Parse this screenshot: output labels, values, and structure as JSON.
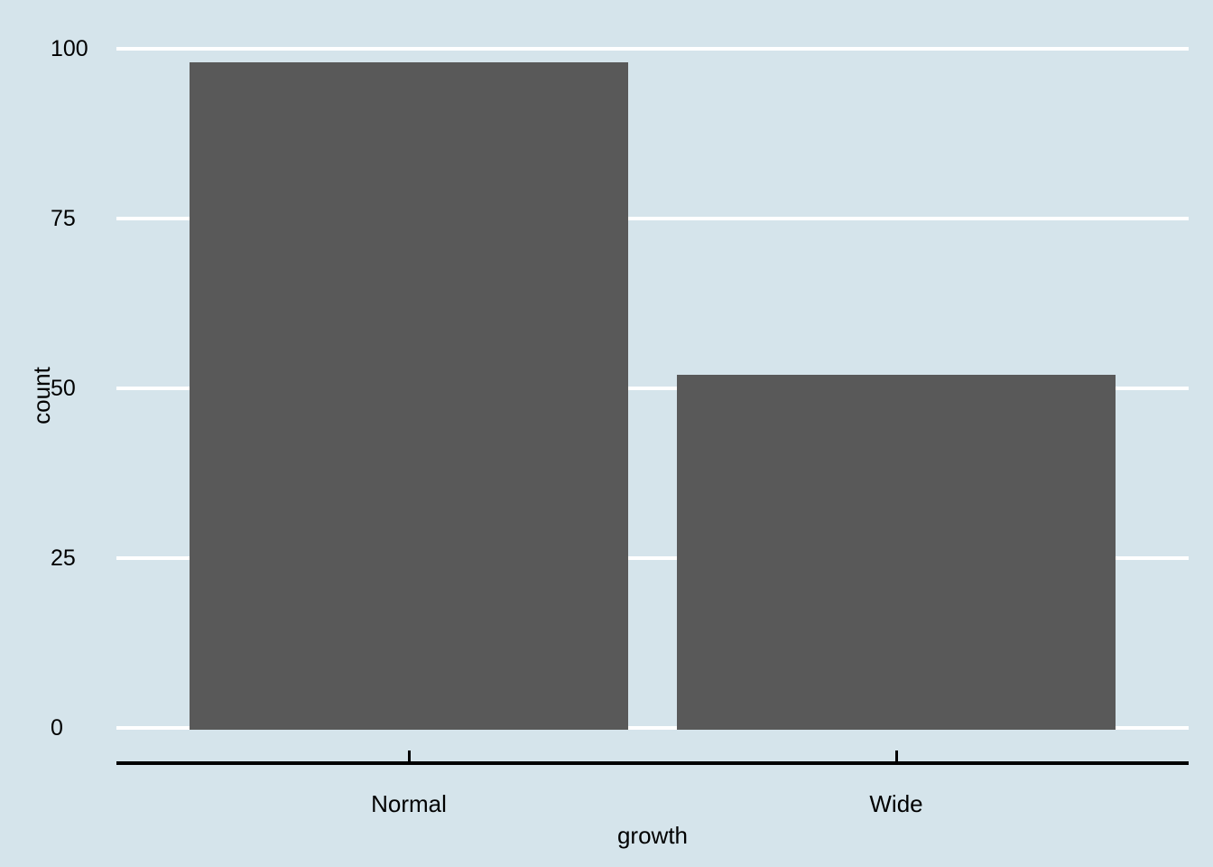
{
  "chart_data": {
    "type": "bar",
    "categories": [
      "Normal",
      "Wide"
    ],
    "values": [
      98,
      52
    ],
    "title": "",
    "xlabel": "growth",
    "ylabel": "count",
    "yticks": [
      0,
      25,
      50,
      75,
      100
    ],
    "ylim": [
      0,
      102.9
    ],
    "grid": "horizontal major gridlines only, white, no minor grid",
    "legend": "none",
    "colors": {
      "background": "#d5e4eb",
      "bar_fill": "#595959",
      "gridline": "#ffffff",
      "axis_line": "#000000",
      "text": "#000000"
    }
  }
}
